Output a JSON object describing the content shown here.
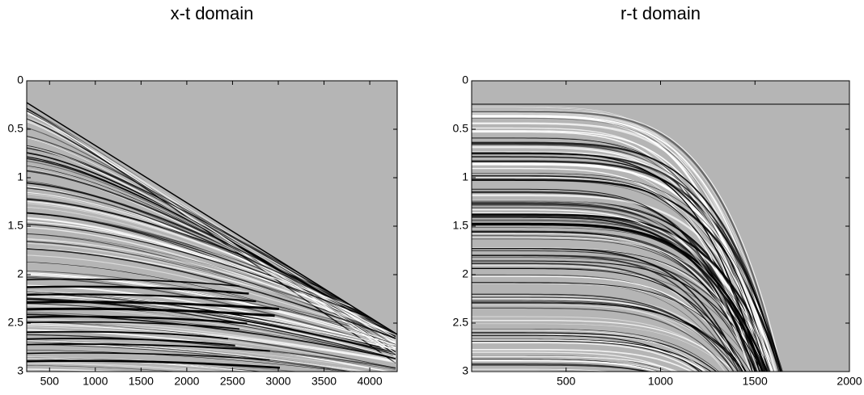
{
  "chart_data": [
    {
      "type": "image",
      "title": "x-t domain",
      "xlim": [
        250,
        4300
      ],
      "ylim": [
        3,
        0
      ],
      "xticks": [
        500,
        1000,
        1500,
        2000,
        2500,
        3000,
        3500,
        4000
      ],
      "yticks": [
        0,
        0.5,
        1,
        1.5,
        2,
        2.5,
        3
      ],
      "background": "#b5b5b5"
    },
    {
      "type": "image",
      "title": "r-t domain",
      "xlim": [
        0,
        2000
      ],
      "ylim": [
        3,
        0
      ],
      "xticks": [
        500,
        1000,
        1500,
        2000
      ],
      "yticks": [
        0,
        0.5,
        1,
        1.5,
        2,
        2.5,
        3
      ],
      "background": "#b5b5b5"
    }
  ]
}
